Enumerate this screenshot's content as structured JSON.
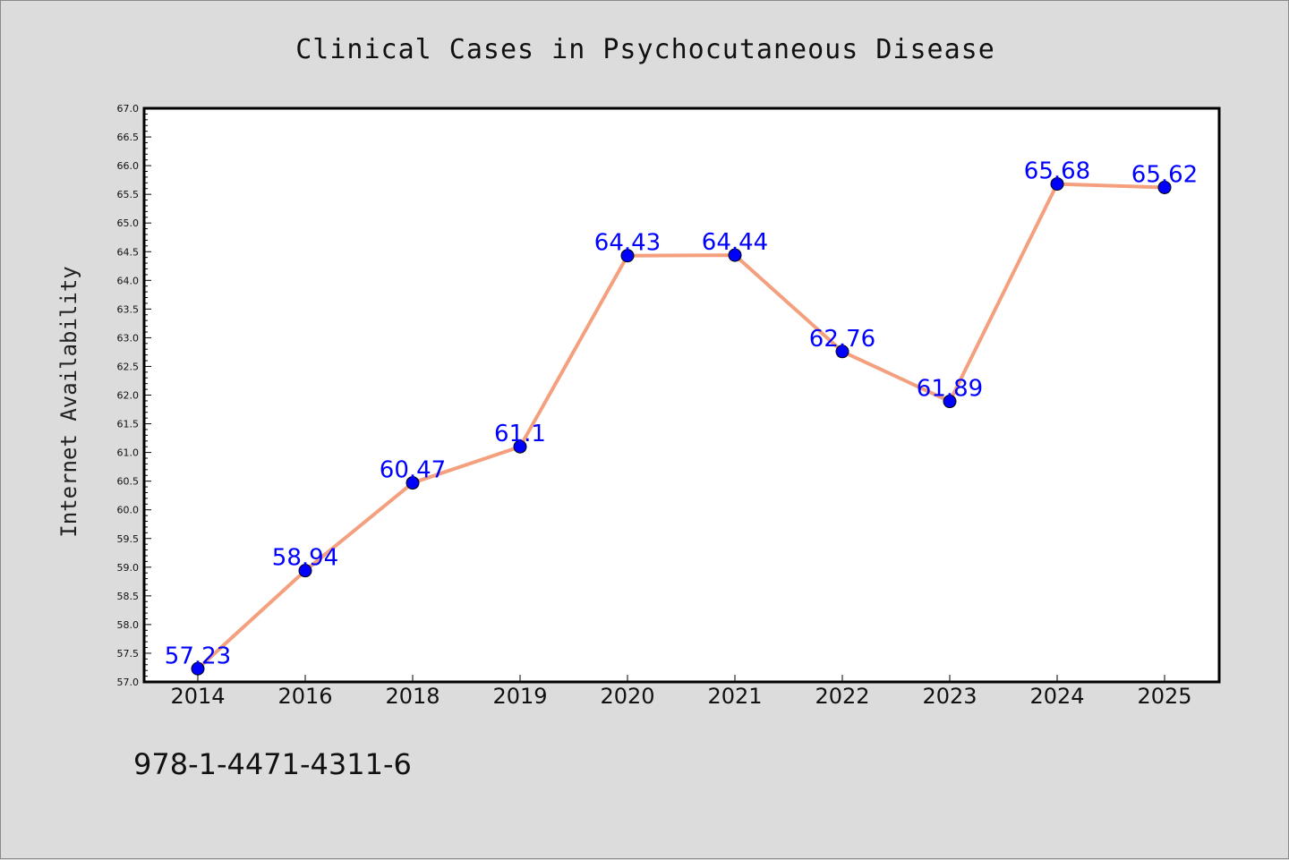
{
  "chart_data": {
    "type": "line",
    "title": "Clinical Cases in Psychocutaneous Disease",
    "xlabel": "",
    "ylabel": "Internet Availability",
    "categories": [
      "2014",
      "2016",
      "2018",
      "2019",
      "2020",
      "2021",
      "2022",
      "2023",
      "2024",
      "2025"
    ],
    "series": [
      {
        "values": [
          57.23,
          58.94,
          60.47,
          61.1,
          64.43,
          64.44,
          62.76,
          61.89,
          65.68,
          65.62
        ],
        "labels": [
          "57.23",
          "58.94",
          "60.47",
          "61.1",
          "64.43",
          "64.44",
          "62.76",
          "61.89",
          "65.68",
          "65.62"
        ],
        "line_color": "#f4a07f",
        "marker_color": "#0000ff"
      }
    ],
    "ylim": [
      57.0,
      67.0
    ],
    "yticks": [
      "57.0",
      "57.5",
      "58.0",
      "58.5",
      "59.0",
      "59.5",
      "60.0",
      "60.5",
      "61.0",
      "61.5",
      "62.0",
      "62.5",
      "63.0",
      "63.5",
      "64.0",
      "64.5",
      "65.0",
      "65.5",
      "66.0",
      "66.5",
      "67.0"
    ],
    "grid": false,
    "legend": "none"
  },
  "footer": {
    "isbn": "978-1-4471-4311-6"
  },
  "colors": {
    "background": "#dcdcdc",
    "plot_area": "#ffffff",
    "label_color": "#0000ff"
  }
}
